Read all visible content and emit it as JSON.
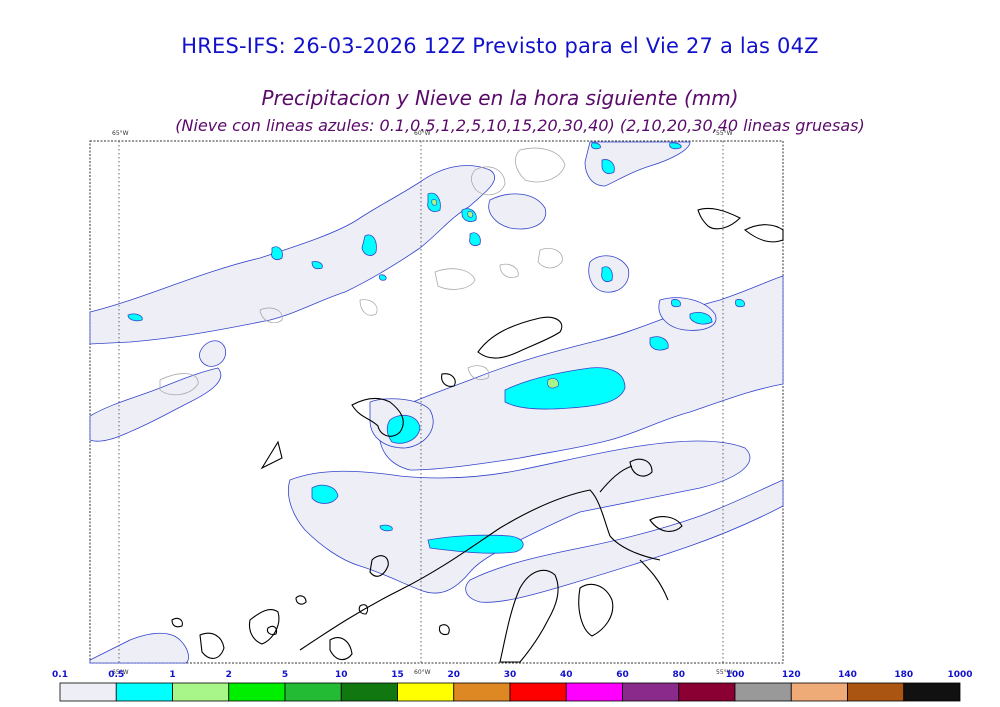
{
  "title": "HRES-IFS: 26-03-2026 12Z Previsto para el Vie 27 a las 04Z",
  "subtitle": "Precipitacion y Nieve en la hora siguiente (mm)",
  "subtitle2": "(Nieve con lineas azules: 0.1,0.5,1,2,5,10,15,20,30,40)  (2,10,20,30,40 lineas gruesas)",
  "meridians": [
    {
      "top_label": "65°W",
      "bottom_label": "65°W"
    },
    {
      "top_label": "60°W",
      "bottom_label": "60°W"
    },
    {
      "top_label": "55°W",
      "bottom_label": "55°W"
    }
  ],
  "legend": {
    "levels": [
      "0.1",
      "0.5",
      "1",
      "2",
      "5",
      "10",
      "15",
      "20",
      "30",
      "40",
      "60",
      "80",
      "100",
      "120",
      "140",
      "180",
      "1000"
    ],
    "colors": [
      "#eeeef6",
      "#00ffff",
      "#a8f58a",
      "#00ee00",
      "#22bb33",
      "#117711",
      "#ffff00",
      "#dd8822",
      "#ff0000",
      "#ff00ff",
      "#8a2a8a",
      "#8a0033",
      "#999999",
      "#eeaa77",
      "#aa5511",
      "#111111"
    ]
  },
  "colors": {
    "precip_light": "#eeeef6",
    "precip_cyan": "#00ffff",
    "snow_contour": "#3344cc",
    "coast": "#000000",
    "grid": "#555555"
  }
}
